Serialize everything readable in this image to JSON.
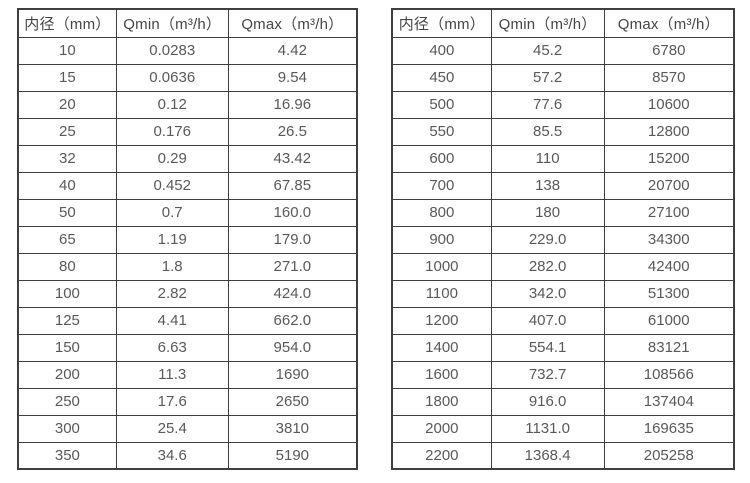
{
  "colors": {
    "border": "#3f3f3f",
    "header_text": "#454545",
    "cell_text": "#595959",
    "background": "#ffffff"
  },
  "tables": [
    {
      "name": "flow-rate-table-small-diameters",
      "headers": [
        "内径（mm）",
        "Qmin（m³/h）",
        "Qmax（m³/h）"
      ],
      "rows": [
        [
          "10",
          "0.0283",
          "4.42"
        ],
        [
          "15",
          "0.0636",
          "9.54"
        ],
        [
          "20",
          "0.12",
          "16.96"
        ],
        [
          "25",
          "0.176",
          "26.5"
        ],
        [
          "32",
          "0.29",
          "43.42"
        ],
        [
          "40",
          "0.452",
          "67.85"
        ],
        [
          "50",
          "0.7",
          "160.0"
        ],
        [
          "65",
          "1.19",
          "179.0"
        ],
        [
          "80",
          "1.8",
          "271.0"
        ],
        [
          "100",
          "2.82",
          "424.0"
        ],
        [
          "125",
          "4.41",
          "662.0"
        ],
        [
          "150",
          "6.63",
          "954.0"
        ],
        [
          "200",
          "11.3",
          "1690"
        ],
        [
          "250",
          "17.6",
          "2650"
        ],
        [
          "300",
          "25.4",
          "3810"
        ],
        [
          "350",
          "34.6",
          "5190"
        ]
      ]
    },
    {
      "name": "flow-rate-table-large-diameters",
      "headers": [
        "内径（mm）",
        "Qmin（m³/h）",
        "Qmax（m³/h）"
      ],
      "rows": [
        [
          "400",
          "45.2",
          "6780"
        ],
        [
          "450",
          "57.2",
          "8570"
        ],
        [
          "500",
          "77.6",
          "10600"
        ],
        [
          "550",
          "85.5",
          "12800"
        ],
        [
          "600",
          "110",
          "15200"
        ],
        [
          "700",
          "138",
          "20700"
        ],
        [
          "800",
          "180",
          "27100"
        ],
        [
          "900",
          "229.0",
          "34300"
        ],
        [
          "1000",
          "282.0",
          "42400"
        ],
        [
          "1100",
          "342.0",
          "51300"
        ],
        [
          "1200",
          "407.0",
          "61000"
        ],
        [
          "1400",
          "554.1",
          "83121"
        ],
        [
          "1600",
          "732.7",
          "108566"
        ],
        [
          "1800",
          "916.0",
          "137404"
        ],
        [
          "2000",
          "1131.0",
          "169635"
        ],
        [
          "2200",
          "1368.4",
          "205258"
        ]
      ]
    }
  ]
}
